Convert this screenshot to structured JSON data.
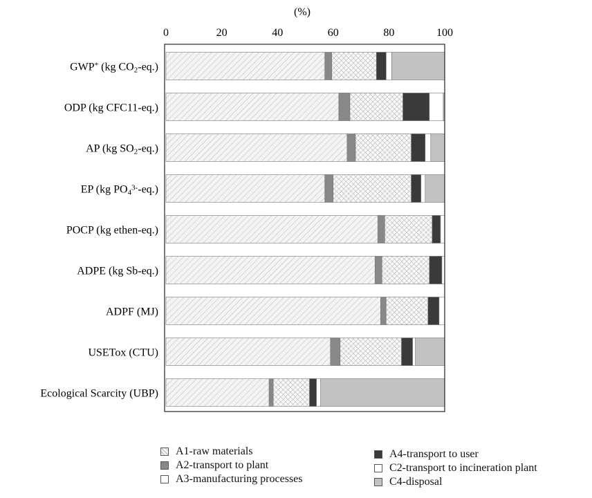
{
  "chart_data": {
    "type": "bar",
    "orientation": "horizontal",
    "stacked": true,
    "title": "",
    "xlabel": "(%)",
    "ylabel": "",
    "xlim": [
      0,
      100
    ],
    "x_ticks": [
      "0",
      "20",
      "40",
      "60",
      "80",
      "100"
    ],
    "grid": false,
    "legend_placement": "bottom",
    "categories": [
      "GWP* (kg CO2-eq.)",
      "ODP (kg CFC11-eq.)",
      "AP (kg SO2-eq.)",
      "EP (kg PO43−-eq.)",
      "POCP (kg ethen-eq.)",
      "ADPE (kg Sb-eq.)",
      "ADPF (MJ)",
      "USETox (CTU)",
      "Ecological Scarcity (UBP)"
    ],
    "category_labels": [
      {
        "parts": [
          {
            "t": "GWP"
          },
          {
            "t": "*",
            "sup": true
          },
          {
            "t": " (kg CO"
          },
          {
            "t": "2",
            "sub": true
          },
          {
            "t": "-eq.)"
          }
        ]
      },
      {
        "parts": [
          {
            "t": "ODP (kg CFC11-eq.)"
          }
        ]
      },
      {
        "parts": [
          {
            "t": "AP (kg SO"
          },
          {
            "t": "2",
            "sub": true
          },
          {
            "t": "-eq.)"
          }
        ]
      },
      {
        "parts": [
          {
            "t": "EP (kg PO"
          },
          {
            "t": "4",
            "sub": true
          },
          {
            "t": "3-",
            "sup": true
          },
          {
            "t": "-eq.)"
          }
        ]
      },
      {
        "parts": [
          {
            "t": "POCP (kg ethen-eq.)"
          }
        ]
      },
      {
        "parts": [
          {
            "t": "ADPE (kg Sb-eq.)"
          }
        ]
      },
      {
        "parts": [
          {
            "t": "ADPF (MJ)"
          }
        ]
      },
      {
        "parts": [
          {
            "t": "USETox (CTU)"
          }
        ]
      },
      {
        "parts": [
          {
            "t": "Ecological Scarcity (UBP)"
          }
        ]
      }
    ],
    "series": [
      {
        "name": "A1-raw materials",
        "color": "#f2f2f2",
        "pattern": "diag",
        "values": [
          57,
          62,
          65,
          57,
          76,
          75,
          77,
          59,
          37
        ]
      },
      {
        "name": "A2-transport to plant",
        "color": "#888888",
        "pattern": "none",
        "values": [
          2.5,
          4,
          3,
          3,
          2.5,
          2.5,
          2,
          3.5,
          1.5
        ]
      },
      {
        "name": "A3-manufacturing processes",
        "color": "#f7f7f7",
        "pattern": "cross",
        "values": [
          16,
          19,
          20,
          28,
          17,
          17,
          15,
          22,
          13
        ]
      },
      {
        "name": "A4-transport to user",
        "color": "#3a3a3a",
        "pattern": "none",
        "values": [
          3.5,
          9.5,
          5,
          3.5,
          3,
          4.5,
          4,
          4,
          2.5
        ]
      },
      {
        "name": "C2-transport to incineration plant",
        "color": "#ffffff",
        "pattern": "none",
        "values": [
          2,
          5,
          2,
          1.5,
          2,
          1,
          2,
          1,
          1.5
        ]
      },
      {
        "name": "C4-disposal",
        "color": "#c2c2c2",
        "pattern": "none",
        "values": [
          20,
          2,
          6,
          7.5,
          1.5,
          1,
          1,
          11,
          45
        ]
      }
    ]
  }
}
